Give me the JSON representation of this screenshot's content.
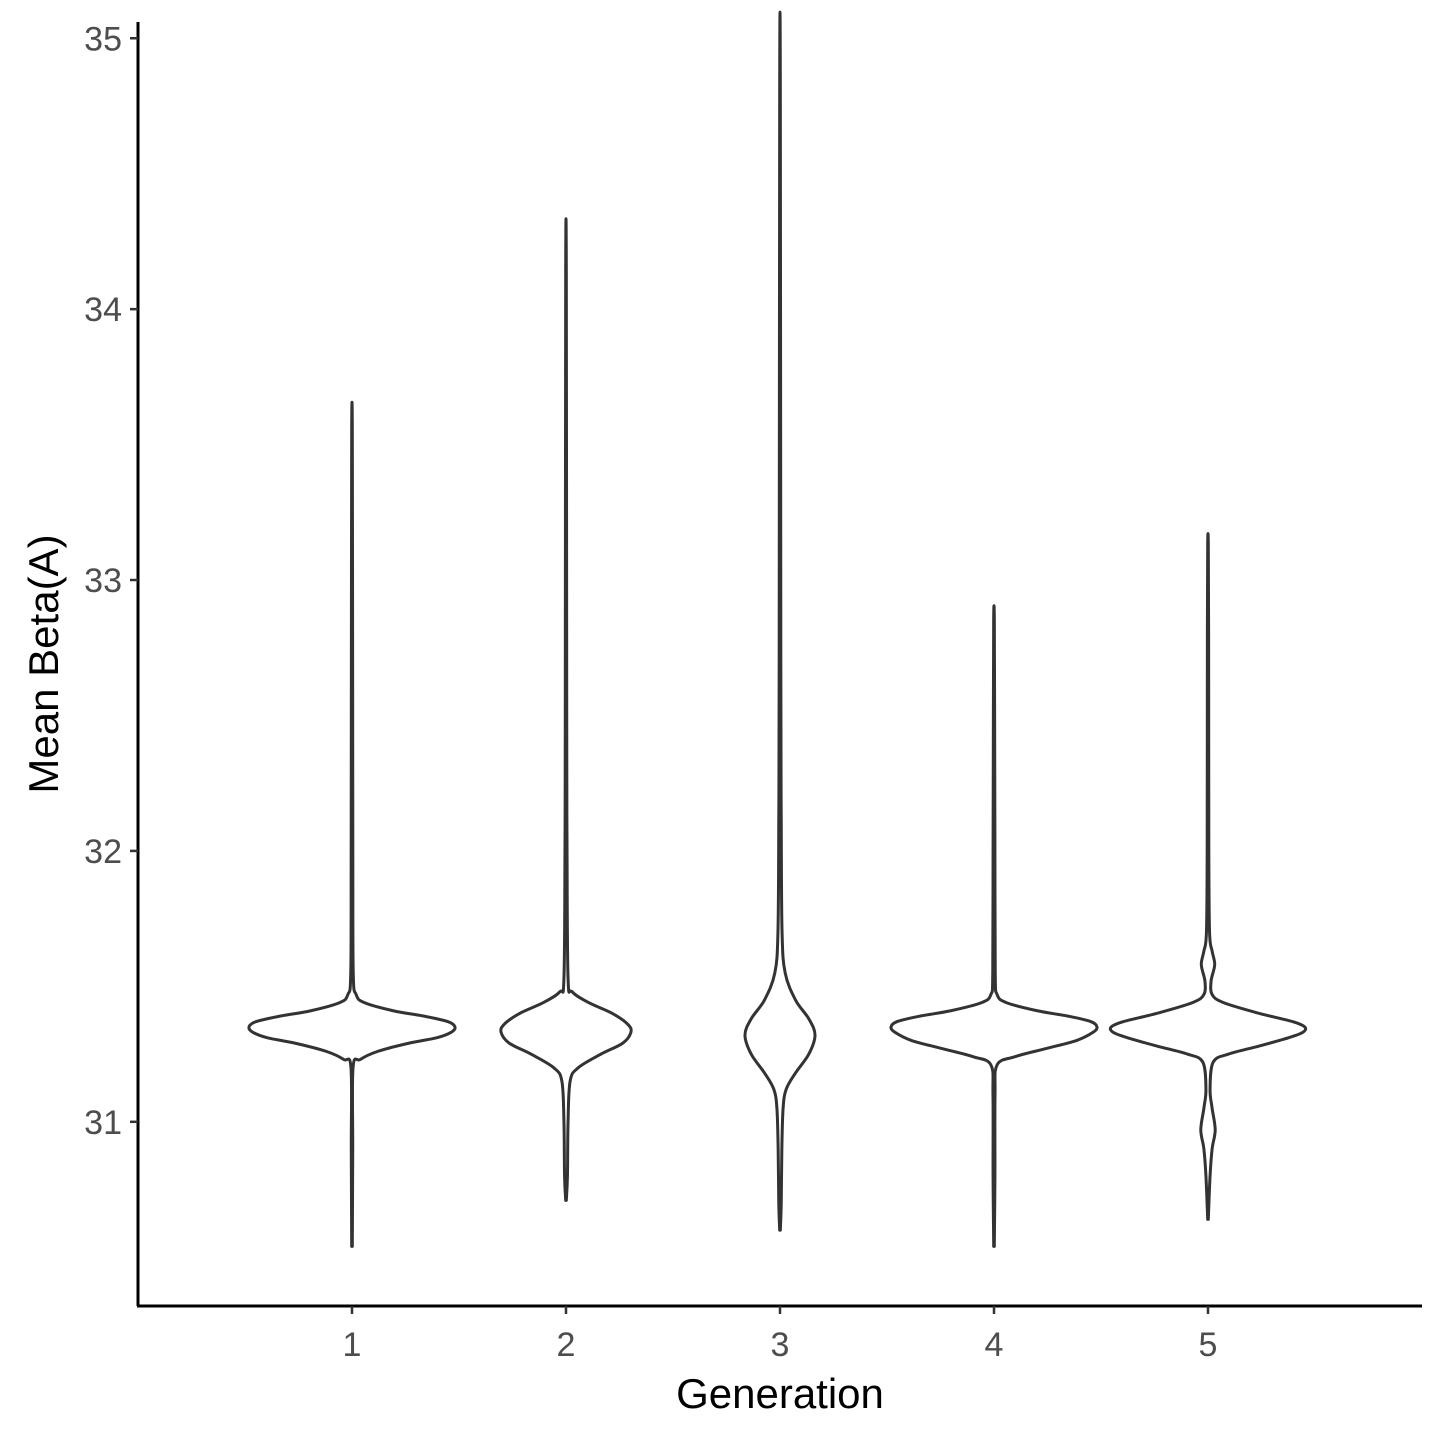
{
  "chart_data": {
    "type": "violin",
    "xlabel": "Generation",
    "ylabel": "Mean Beta(A)",
    "categories": [
      "1",
      "2",
      "3",
      "4",
      "5"
    ],
    "yticks": [
      31,
      32,
      33,
      34,
      35
    ],
    "ylim": [
      30.32,
      35.06
    ],
    "grid": false,
    "colors": {
      "outline": "#333333",
      "fill": "#ffffff",
      "axis": "#000000",
      "tick_text": "#4d4d4d"
    },
    "series": [
      {
        "category": "1",
        "profile": [
          [
            30.54,
            0.003
          ],
          [
            30.9,
            0.007
          ],
          [
            31.2,
            0.01
          ],
          [
            31.23,
            0.08
          ],
          [
            31.26,
            0.25
          ],
          [
            31.29,
            0.55
          ],
          [
            31.31,
            0.82
          ],
          [
            31.33,
            0.96
          ],
          [
            31.35,
            1.0
          ],
          [
            31.37,
            0.93
          ],
          [
            31.39,
            0.7
          ],
          [
            31.41,
            0.4
          ],
          [
            31.44,
            0.12
          ],
          [
            31.47,
            0.04
          ],
          [
            31.55,
            0.012
          ],
          [
            32.0,
            0.008
          ],
          [
            32.7,
            0.006
          ],
          [
            33.55,
            0.003
          ]
        ]
      },
      {
        "category": "2",
        "profile": [
          [
            30.71,
            0.003
          ],
          [
            30.8,
            0.014
          ],
          [
            31.0,
            0.02
          ],
          [
            31.15,
            0.04
          ],
          [
            31.2,
            0.12
          ],
          [
            31.25,
            0.34
          ],
          [
            31.29,
            0.55
          ],
          [
            31.33,
            0.63
          ],
          [
            31.36,
            0.6
          ],
          [
            31.4,
            0.45
          ],
          [
            31.44,
            0.22
          ],
          [
            31.48,
            0.06
          ],
          [
            31.53,
            0.02
          ],
          [
            32.0,
            0.01
          ],
          [
            32.5,
            0.007
          ],
          [
            34.13,
            0.003
          ]
        ]
      },
      {
        "category": "3",
        "profile": [
          [
            30.6,
            0.003
          ],
          [
            30.7,
            0.012
          ],
          [
            30.9,
            0.018
          ],
          [
            31.05,
            0.03
          ],
          [
            31.12,
            0.06
          ],
          [
            31.18,
            0.15
          ],
          [
            31.25,
            0.28
          ],
          [
            31.32,
            0.34
          ],
          [
            31.38,
            0.28
          ],
          [
            31.45,
            0.15
          ],
          [
            31.55,
            0.05
          ],
          [
            31.7,
            0.02
          ],
          [
            32.1,
            0.012
          ],
          [
            32.7,
            0.008
          ],
          [
            34.83,
            0.003
          ]
        ]
      },
      {
        "category": "4",
        "profile": [
          [
            30.54,
            0.003
          ],
          [
            30.8,
            0.009
          ],
          [
            31.1,
            0.01
          ],
          [
            31.21,
            0.03
          ],
          [
            31.24,
            0.2
          ],
          [
            31.27,
            0.5
          ],
          [
            31.3,
            0.8
          ],
          [
            31.33,
            0.96
          ],
          [
            31.35,
            1.0
          ],
          [
            31.37,
            0.94
          ],
          [
            31.39,
            0.72
          ],
          [
            31.41,
            0.42
          ],
          [
            31.44,
            0.12
          ],
          [
            31.47,
            0.03
          ],
          [
            31.55,
            0.012
          ],
          [
            32.0,
            0.009
          ],
          [
            32.5,
            0.006
          ],
          [
            32.86,
            0.003
          ]
        ]
      },
      {
        "category": "5",
        "profile": [
          [
            30.64,
            0.003
          ],
          [
            30.8,
            0.02
          ],
          [
            30.9,
            0.04
          ],
          [
            30.97,
            0.07
          ],
          [
            31.05,
            0.04
          ],
          [
            31.12,
            0.02
          ],
          [
            31.22,
            0.05
          ],
          [
            31.25,
            0.2
          ],
          [
            31.28,
            0.5
          ],
          [
            31.31,
            0.78
          ],
          [
            31.33,
            0.92
          ],
          [
            31.35,
            0.94
          ],
          [
            31.37,
            0.82
          ],
          [
            31.4,
            0.5
          ],
          [
            31.44,
            0.15
          ],
          [
            31.47,
            0.04
          ],
          [
            31.52,
            0.03
          ],
          [
            31.58,
            0.065
          ],
          [
            31.63,
            0.04
          ],
          [
            31.7,
            0.015
          ],
          [
            32.0,
            0.008
          ],
          [
            32.8,
            0.006
          ],
          [
            33.13,
            0.003
          ]
        ]
      }
    ]
  }
}
